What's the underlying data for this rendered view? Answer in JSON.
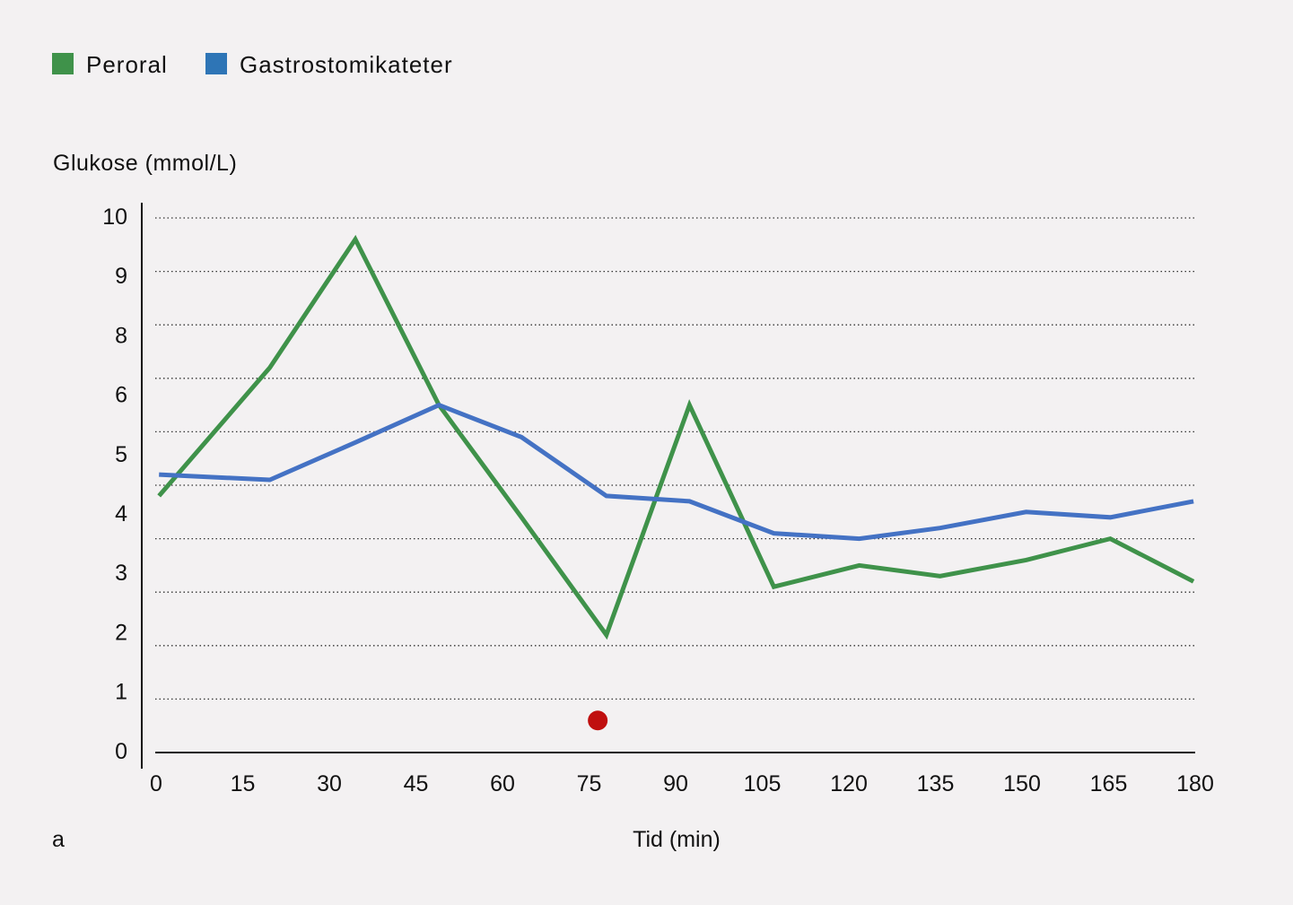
{
  "chart_data": {
    "type": "line",
    "title": "",
    "ylabel": "Glukose (mmol/L)",
    "xlabel": "Tid (min)",
    "panel_label": "a",
    "ylim": [
      0,
      10
    ],
    "xlim": [
      0,
      180
    ],
    "grid": "horizontal dotted",
    "legend_position": "top-left",
    "y_tick_labels": [
      "10",
      "9",
      "8",
      "6",
      "5",
      "4",
      "3",
      "2",
      "1",
      "0"
    ],
    "x_tick_labels": [
      "0",
      "15",
      "30",
      "45",
      "60",
      "75",
      "90",
      "105",
      "120",
      "135",
      "150",
      "165",
      "180"
    ],
    "x": [
      0.5,
      19.7,
      34.5,
      49,
      63.3,
      78,
      92.4,
      107,
      121.8,
      135.8,
      150.7,
      165.3,
      179.7
    ],
    "series": [
      {
        "name": "Peroral",
        "color": "#3f924a",
        "values": [
          4.8,
          7.2,
          9.6,
          6.5,
          4.4,
          2.2,
          6.5,
          3.1,
          3.5,
          3.3,
          3.6,
          4.0,
          3.2
        ]
      },
      {
        "name": "Gastrostomikateter",
        "color": "#4472c4",
        "values": [
          5.2,
          5.1,
          5.8,
          6.5,
          5.9,
          4.8,
          4.7,
          4.1,
          4.0,
          4.2,
          4.5,
          4.4,
          4.7
        ]
      }
    ],
    "legend_colors": [
      "#3f924a",
      "#2e75b6"
    ],
    "markers": [
      {
        "x": 76.5,
        "y": 0.6,
        "color": "#c00f0f"
      }
    ]
  }
}
